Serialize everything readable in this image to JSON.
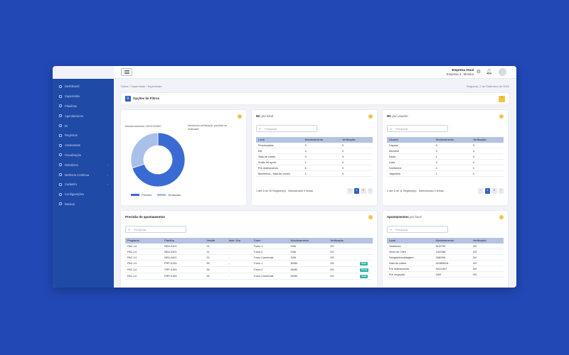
{
  "brand": {
    "name": "easypac"
  },
  "sidebar": {
    "items": [
      {
        "label": "Dashboard",
        "expandable": false
      },
      {
        "label": "Supervisão",
        "expandable": false
      },
      {
        "label": "Planilhas",
        "expandable": false
      },
      {
        "label": "Agendamento",
        "expandable": false
      },
      {
        "label": "BI",
        "expandable": false
      },
      {
        "label": "Registros",
        "expandable": false
      },
      {
        "label": "Assinaturas",
        "expandable": false
      },
      {
        "label": "Fiscalização",
        "expandable": false
      },
      {
        "label": "Relatórios",
        "expandable": true
      },
      {
        "label": "Melhoria Contínua",
        "expandable": true
      },
      {
        "label": "Cadastro",
        "expandable": true
      },
      {
        "label": "Configurações",
        "expandable": false
      },
      {
        "label": "Backup",
        "expandable": false
      }
    ]
  },
  "topbar": {
    "company_title": "Empresa Atual",
    "company_name": "Empresa 3 - Moreira"
  },
  "breadcrumb": {
    "home": "Home",
    "sep": "/",
    "level1": "Supervisão",
    "level2": "Supervisão"
  },
  "date": "Segunda, 2 de Setembro de 2024",
  "filters": {
    "title": "Opções de Filtros"
  },
  "monitor_card": {
    "count_label": "Monitoramentos 13021/31550",
    "note": "Nenhuma verificação prevista ou realizada",
    "chart_data": {
      "type": "pie",
      "labels": [
        "Previsto",
        "Realizado"
      ],
      "values": [
        70,
        30
      ],
      "colors": [
        "#3a6bd3",
        "#a9c0ea"
      ],
      "legend_position": "bottom"
    }
  },
  "nc_local": {
    "title": "NC",
    "subtitle": "por local",
    "search_placeholder": "Pesquisar",
    "columns": [
      "Local",
      "Monitoramento",
      "Verificação"
    ],
    "rows": [
      [
        "Processados",
        "3",
        "0"
      ],
      [
        "Eiti",
        "3",
        "0"
      ],
      [
        "Sala de cortes",
        "4",
        "5"
      ],
      [
        "Sotão de apoio",
        "1",
        "0"
      ],
      [
        "Pré resfriamento",
        "5",
        "0"
      ],
      [
        "Banheiros - Sala de cortes",
        "1",
        "0"
      ]
    ],
    "pager_info": "1 até 6 de 10 Registro(s)",
    "selected_info": "Selecionado 0 linhas",
    "pages": [
      "1",
      "2"
    ]
  },
  "nc_user": {
    "title": "NC",
    "subtitle": "por usuário",
    "search_placeholder": "Pesquisar",
    "columns": [
      "Usuário",
      "Monitoramento",
      "Verificação"
    ],
    "rows": [
      [
        "Dayane",
        "6",
        "0"
      ],
      [
        "Michelle",
        "4",
        "0"
      ],
      [
        "Naira",
        "1",
        "0"
      ],
      [
        "Lidia",
        "3",
        "0"
      ],
      [
        "Guilherme",
        "4",
        "0"
      ],
      [
        "Jaqueline",
        "1",
        "0"
      ]
    ],
    "pager_info": "1 até 6 de 11 Registro(s)",
    "selected_info": "Selecionado 0 linhas",
    "pages": [
      "1",
      "2"
    ]
  },
  "forecast": {
    "title": "Previsão de apontamentos",
    "search_placeholder": "Pesquisar",
    "columns": [
      "Programa",
      "Planilha",
      "Versão",
      "Aten. Doc",
      "Turno",
      "Monitoramento",
      "Verificação",
      ""
    ],
    "rows": [
      [
        "PAC-14",
        "BEA-0401",
        "21",
        "-",
        "Turno 1",
        "0/36",
        "0/0",
        ""
      ],
      [
        "PAC-14",
        "BEA-0401",
        "21",
        "-",
        "Turno 2",
        "0/36",
        "0/0",
        ""
      ],
      [
        "PAC-14",
        "BEA-0401",
        "21",
        "-",
        "Turno Comercial",
        "0/36",
        "0/0",
        ""
      ],
      [
        "PAC-14",
        "FRP-0159",
        "35",
        "-",
        "Turno 1",
        "80/80",
        "0/0",
        "Ativa"
      ],
      [
        "PAC-14",
        "FRP-0159",
        "35",
        "-",
        "Turno 2",
        "80/80",
        "0/0",
        "Pend"
      ],
      [
        "PAC-14",
        "FRP-0159",
        "35",
        "-",
        "Turno Comercial",
        "80/80",
        "0/0",
        "Ativa"
      ]
    ]
  },
  "apont_local": {
    "title": "Apontamentos",
    "subtitle": "por local",
    "search_placeholder": "Pesquisar",
    "columns": [
      "Local",
      "Monitoramento",
      "Verificação"
    ],
    "rows": [
      [
        "Vestiários",
        "513/700",
        "0/0"
      ],
      [
        "Setor de CMS",
        "192/288",
        "0/0"
      ],
      [
        "Sangria/escaldagem",
        "268/396",
        "0/0"
      ],
      [
        "Sala de cortes",
        "4248/6004",
        "0/0"
      ],
      [
        "Pré resfriamento",
        "901/1347",
        "0/0"
      ],
      [
        "Pré inspeção",
        "0/63",
        "0/0"
      ]
    ]
  }
}
